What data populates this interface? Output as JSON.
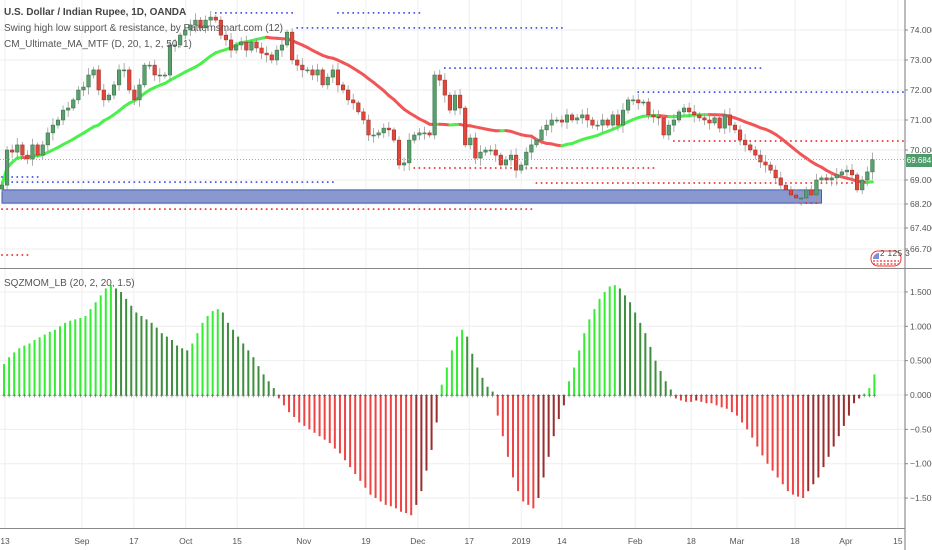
{
  "header": {
    "symbol_title": "U.S. Dollar / Indian Rupee, 1D, OANDA",
    "indicator_1": "Swing high low support & resistance, by Patternsmart.com (12)",
    "indicator_2": "CM_Ultimate_MA_MTF (D, 20, 1, 2, 50, 1)",
    "oscillator_title": "SQZMOM_LB (20, 2, 20, 1.5)"
  },
  "last_price_label": "69.684",
  "badge_text": "2 125 3",
  "colors": {
    "up_candle": "#5b9f6e",
    "down_candle": "#e0473c",
    "ma_up": "#4cf04c",
    "ma_down": "#f25555",
    "resistance": "#3344ee",
    "support": "#ee2222",
    "zone": "#7d8fcc",
    "mom_up_strong": "#33ee33",
    "mom_up_weak": "#3d8f3d",
    "mom_down_strong": "#f04444",
    "mom_down_weak": "#9a2d2d"
  },
  "chart_data": [
    {
      "type": "candlestick",
      "title": "U.S. Dollar / Indian Rupee, 1D, OANDA",
      "ylim": [
        66.2,
        75.0
      ],
      "y_ticks": [
        "74.000",
        "73.000",
        "72.000",
        "71.000",
        "70.000",
        "69.000",
        "68.200",
        "67.400",
        "66.700"
      ],
      "y_tick_values": [
        74.0,
        73.0,
        72.0,
        71.0,
        70.0,
        69.0,
        68.2,
        67.4,
        66.7
      ],
      "x_ticks": [
        {
          "label": "13",
          "bar": 0.6
        },
        {
          "label": "Sep",
          "bar": 15.7
        },
        {
          "label": "17",
          "bar": 25.9
        },
        {
          "label": "Oct",
          "bar": 36.1
        },
        {
          "label": "15",
          "bar": 46.2
        },
        {
          "label": "Nov",
          "bar": 59.3
        },
        {
          "label": "19",
          "bar": 71.5
        },
        {
          "label": "Dec",
          "bar": 81.7
        },
        {
          "label": "17",
          "bar": 91.8
        },
        {
          "label": "2019",
          "bar": 102.0
        },
        {
          "label": "14",
          "bar": 110.0
        },
        {
          "label": "Feb",
          "bar": 124.4
        },
        {
          "label": "18",
          "bar": 135.4
        },
        {
          "label": "Mar",
          "bar": 144.4
        },
        {
          "label": "18",
          "bar": 155.8
        },
        {
          "label": "Apr",
          "bar": 165.8
        },
        {
          "label": "15",
          "bar": 176.0
        }
      ],
      "first_open": 68.7,
      "closes": [
        68.83,
        70.0,
        69.93,
        70.17,
        69.83,
        69.7,
        70.17,
        69.83,
        70.17,
        70.57,
        70.83,
        71.0,
        71.33,
        71.4,
        71.67,
        72.0,
        72.1,
        72.5,
        72.67,
        72.0,
        71.67,
        71.83,
        72.17,
        72.67,
        72.67,
        72.0,
        71.67,
        72.17,
        72.83,
        72.83,
        72.5,
        72.5,
        72.5,
        73.5,
        73.5,
        73.83,
        74.0,
        74.17,
        74.33,
        74.07,
        74.33,
        74.43,
        74.33,
        73.83,
        73.67,
        73.33,
        73.5,
        73.6,
        73.33,
        73.6,
        73.4,
        73.23,
        73.17,
        73.0,
        73.33,
        73.5,
        73.93,
        73.0,
        72.83,
        72.67,
        72.67,
        72.5,
        72.67,
        72.17,
        72.43,
        72.67,
        72.17,
        72.0,
        71.67,
        71.57,
        71.27,
        71.0,
        70.5,
        70.5,
        70.57,
        70.73,
        70.67,
        70.33,
        69.5,
        69.57,
        70.33,
        70.5,
        70.57,
        70.57,
        70.5,
        72.5,
        72.33,
        71.83,
        71.33,
        71.83,
        71.4,
        70.17,
        70.4,
        69.73,
        69.93,
        70.0,
        70.0,
        69.83,
        69.5,
        69.67,
        69.83,
        69.33,
        69.5,
        69.93,
        70.17,
        70.33,
        70.67,
        70.83,
        71.0,
        71.0,
        70.93,
        71.17,
        71.0,
        71.07,
        71.17,
        71.0,
        70.83,
        70.83,
        71.0,
        70.83,
        71.17,
        70.83,
        71.33,
        71.67,
        71.67,
        71.57,
        71.6,
        71.17,
        71.1,
        71.07,
        70.5,
        70.83,
        71.0,
        71.27,
        71.4,
        71.27,
        71.17,
        71.07,
        71.0,
        70.9,
        71.07,
        70.73,
        71.17,
        70.83,
        70.67,
        70.33,
        70.17,
        70.0,
        69.83,
        69.6,
        69.5,
        69.33,
        69.07,
        68.83,
        68.67,
        68.5,
        68.4,
        68.4,
        68.67,
        68.5,
        69.0,
        69.07,
        69.0,
        69.07,
        69.17,
        69.27,
        69.33,
        69.17,
        68.67,
        69.0,
        69.27,
        69.684
      ],
      "last_price": 69.684,
      "moving_average": {
        "type": "SMA",
        "period": 20
      },
      "resistance_levels": [
        {
          "price": 74.57,
          "from_bar": 42,
          "to_bar": 57
        },
        {
          "price": 74.57,
          "from_bar": 66,
          "to_bar": 82
        },
        {
          "price": 74.07,
          "from_bar": 58,
          "to_bar": 110
        },
        {
          "price": 72.73,
          "from_bar": 87,
          "to_bar": 149
        },
        {
          "price": 71.93,
          "from_bar": 125,
          "to_bar": 181
        },
        {
          "price": 69.1,
          "from_bar": 0,
          "to_bar": 7
        },
        {
          "price": 68.93,
          "from_bar": 0,
          "to_bar": 65
        }
      ],
      "support_levels": [
        {
          "price": 68.03,
          "from_bar": 0,
          "to_bar": 104
        },
        {
          "price": 66.5,
          "from_bar": 0,
          "to_bar": 5
        },
        {
          "price": 69.4,
          "from_bar": 81,
          "to_bar": 128
        },
        {
          "price": 68.9,
          "from_bar": 105,
          "to_bar": 168
        },
        {
          "price": 70.3,
          "from_bar": 132,
          "to_bar": 181
        },
        {
          "price": 68.23,
          "from_bar": 157,
          "to_bar": 160
        }
      ],
      "zone": {
        "price_top": 68.67,
        "price_bottom": 68.23,
        "from_bar": 0,
        "to_bar": 161
      }
    },
    {
      "type": "bar",
      "title": "SQZMOM_LB (20, 2, 20, 1.5)",
      "ylim": [
        -1.95,
        1.9
      ],
      "y_ticks": [
        "1.500",
        "1.000",
        "0.500",
        "0.000",
        "−0.500",
        "−1.000",
        "−1.500"
      ],
      "y_tick_values": [
        1.5,
        1.0,
        0.5,
        0.0,
        -0.5,
        -1.0,
        -1.5
      ],
      "values": [
        0.45,
        0.55,
        0.62,
        0.68,
        0.72,
        0.75,
        0.8,
        0.84,
        0.88,
        0.92,
        0.95,
        1.0,
        1.05,
        1.08,
        1.1,
        1.12,
        1.15,
        1.25,
        1.35,
        1.45,
        1.55,
        1.6,
        1.55,
        1.5,
        1.4,
        1.3,
        1.2,
        1.15,
        1.1,
        1.05,
        0.98,
        0.9,
        0.85,
        0.8,
        0.72,
        0.68,
        0.65,
        0.75,
        0.9,
        1.05,
        1.15,
        1.22,
        1.25,
        1.2,
        1.05,
        0.95,
        0.85,
        0.75,
        0.65,
        0.55,
        0.42,
        0.3,
        0.2,
        0.1,
        -0.05,
        -0.15,
        -0.25,
        -0.32,
        -0.4,
        -0.45,
        -0.5,
        -0.55,
        -0.6,
        -0.65,
        -0.7,
        -0.78,
        -0.85,
        -0.95,
        -1.05,
        -1.15,
        -1.25,
        -1.35,
        -1.45,
        -1.5,
        -1.55,
        -1.6,
        -1.62,
        -1.65,
        -1.7,
        -1.72,
        -1.75,
        -1.6,
        -1.4,
        -1.1,
        -0.8,
        -0.4,
        0.15,
        0.4,
        0.65,
        0.85,
        0.95,
        0.85,
        0.6,
        0.4,
        0.25,
        0.12,
        0.05,
        -0.3,
        -0.6,
        -0.9,
        -1.2,
        -1.4,
        -1.55,
        -1.6,
        -1.65,
        -1.5,
        -1.2,
        -0.9,
        -0.6,
        -0.35,
        -0.15,
        0.2,
        0.4,
        0.65,
        0.9,
        1.1,
        1.25,
        1.4,
        1.5,
        1.58,
        1.6,
        1.55,
        1.45,
        1.35,
        1.2,
        1.05,
        0.9,
        0.7,
        0.5,
        0.35,
        0.2,
        0.08,
        -0.05,
        -0.08,
        -0.1,
        -0.1,
        -0.08,
        -0.1,
        -0.12,
        -0.12,
        -0.15,
        -0.18,
        -0.2,
        -0.25,
        -0.3,
        -0.4,
        -0.5,
        -0.62,
        -0.75,
        -0.88,
        -1.0,
        -1.1,
        -1.2,
        -1.3,
        -1.4,
        -1.45,
        -1.48,
        -1.5,
        -1.4,
        -1.3,
        -1.2,
        -1.05,
        -0.9,
        -0.75,
        -0.6,
        -0.45,
        -0.3,
        -0.12,
        -0.05,
        0.02,
        0.1,
        0.3
      ]
    }
  ]
}
